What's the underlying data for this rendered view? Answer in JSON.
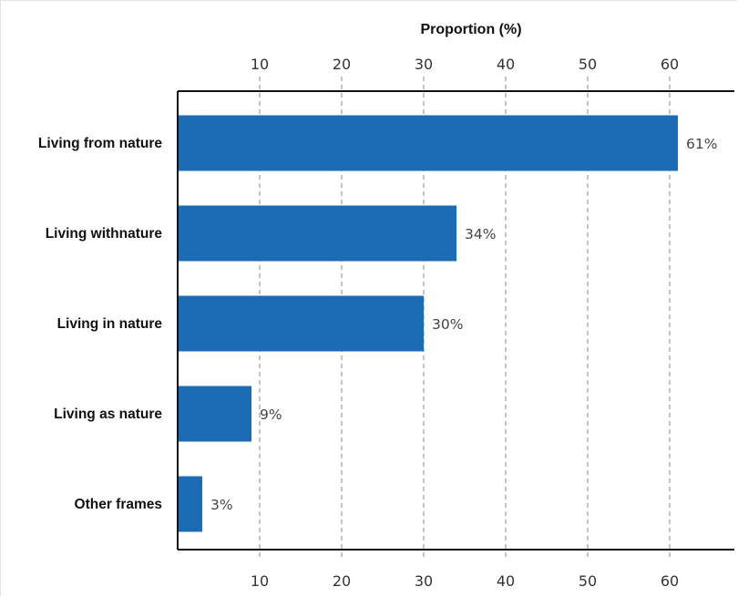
{
  "chart_data": {
    "type": "bar",
    "orientation": "horizontal",
    "title": "",
    "xlabel": "Proportion (%)",
    "ylabel": "",
    "categories": [
      "Living from nature",
      "Living withnature",
      "Living in nature",
      "Living as nature",
      "Other frames"
    ],
    "values": [
      61,
      34,
      30,
      9,
      3
    ],
    "value_labels": [
      "61%",
      "34%",
      "30%",
      "9%",
      "3%"
    ],
    "xticks": [
      10,
      20,
      30,
      40,
      50,
      60
    ],
    "xlim": [
      0,
      68
    ],
    "grid": "vertical dashed",
    "bar_color": "#1b6bb5"
  }
}
